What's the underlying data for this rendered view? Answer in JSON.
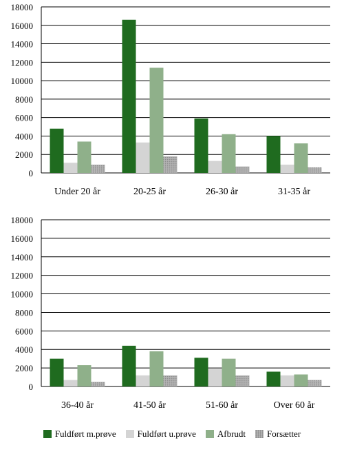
{
  "chart_data": [
    {
      "type": "bar",
      "categories": [
        "Under 20 år",
        "20-25 år",
        "26-30 år",
        "31-35 år"
      ],
      "ylim": [
        0,
        18000
      ],
      "yticks": [
        "0",
        "2000",
        "4000",
        "6000",
        "8000",
        "10000",
        "12000",
        "14000",
        "16000",
        "18000"
      ],
      "grid": true,
      "series": [
        {
          "name": "Fuldført m.prøve",
          "values": [
            4800,
            16600,
            5900,
            4000
          ]
        },
        {
          "name": "Fuldført u.prøve",
          "values": [
            1100,
            3300,
            1300,
            900
          ]
        },
        {
          "name": "Afbrudt",
          "values": [
            3400,
            11400,
            4200,
            3200
          ]
        },
        {
          "name": "Forsætter",
          "values": [
            900,
            1800,
            700,
            600
          ]
        }
      ]
    },
    {
      "type": "bar",
      "categories": [
        "36-40 år",
        "41-50 år",
        "51-60 år",
        "Over 60 år"
      ],
      "ylim": [
        0,
        18000
      ],
      "yticks": [
        "0",
        "2000",
        "4000",
        "6000",
        "8000",
        "10000",
        "12000",
        "14000",
        "16000",
        "18000"
      ],
      "grid": true,
      "series": [
        {
          "name": "Fuldført m.prøve",
          "values": [
            3000,
            4400,
            3100,
            1600
          ]
        },
        {
          "name": "Fuldført u.prøve",
          "values": [
            700,
            1200,
            1900,
            1200
          ]
        },
        {
          "name": "Afbrudt",
          "values": [
            2300,
            3800,
            3000,
            1300
          ]
        },
        {
          "name": "Forsætter",
          "values": [
            500,
            1200,
            1200,
            700
          ]
        }
      ]
    }
  ],
  "legend": {
    "placement": "bottom",
    "items": [
      "Fuldført m.prøve",
      "Fuldført u.prøve",
      "Afbrudt",
      "Forsætter"
    ]
  },
  "colors": [
    "#1f6b1f",
    "#d4d4d4",
    "#8fb08a",
    "#a6a6a6"
  ]
}
